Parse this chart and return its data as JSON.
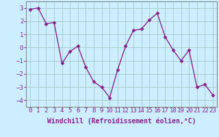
{
  "x": [
    0,
    1,
    2,
    3,
    4,
    5,
    6,
    7,
    8,
    9,
    10,
    11,
    12,
    13,
    14,
    15,
    16,
    17,
    18,
    19,
    20,
    21,
    22,
    23
  ],
  "y": [
    2.9,
    3.0,
    1.8,
    1.9,
    -1.2,
    -0.3,
    0.1,
    -1.5,
    -2.6,
    -3.0,
    -3.8,
    -1.7,
    0.1,
    1.3,
    1.4,
    2.1,
    2.6,
    0.8,
    -0.2,
    -1.0,
    -0.2,
    -3.0,
    -2.8,
    -3.6
  ],
  "line_color": "#882288",
  "marker": "D",
  "marker_size": 2.5,
  "linewidth": 1.0,
  "bg_color": "#cceeff",
  "grid_color": "#aacccc",
  "xlabel": "Windchill (Refroidissement éolien,°C)",
  "xlabel_fontsize": 7,
  "tick_fontsize": 6.5,
  "ylim": [
    -4.5,
    3.5
  ],
  "yticks": [
    -4,
    -3,
    -2,
    -1,
    0,
    1,
    2,
    3
  ],
  "xlim": [
    -0.5,
    23.5
  ]
}
